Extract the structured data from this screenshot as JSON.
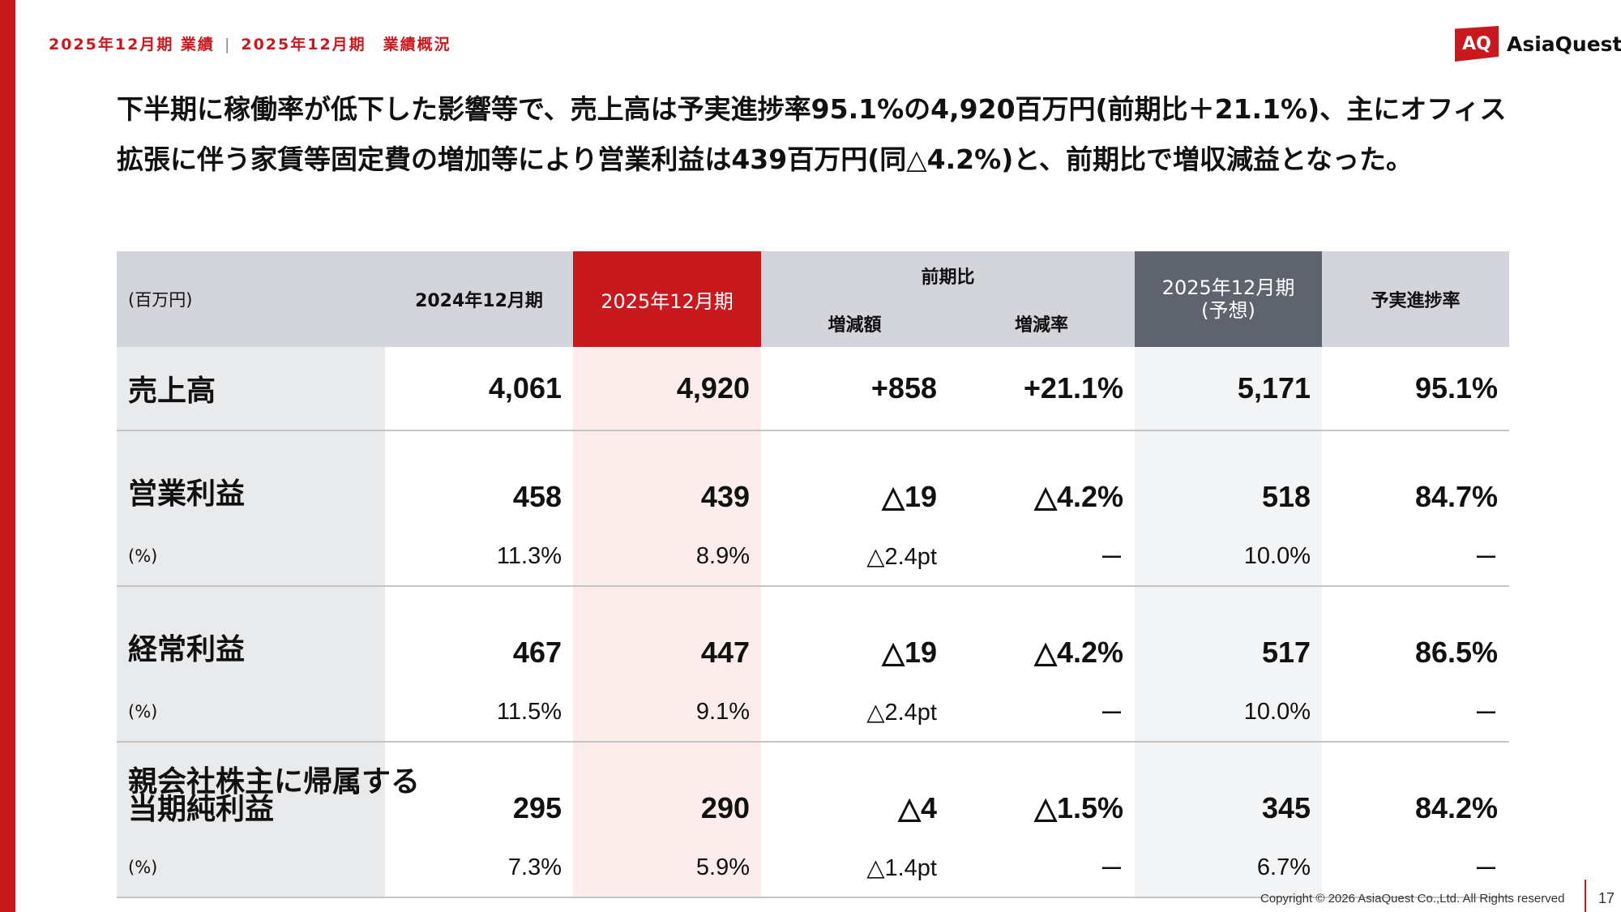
{
  "breadcrumb": {
    "section": "2025年12月期 業績",
    "page": "2025年12月期　業績概況"
  },
  "logo": {
    "mark": "AQ",
    "name": "AsiaQuest"
  },
  "headline": {
    "line1": "下半期に稼働率が低下した影響等で、売上高は予実進捗率95.1%の4,920百万円(前期比＋21.1%)、主にオフィス",
    "line2": "拡張に伴う家賃等固定費の増加等により営業利益は439百万円(同△4.2%)と、前期比で増収減益となった。"
  },
  "table": {
    "header": {
      "unit": "(百万円)",
      "prev_period": "2024年12月期",
      "curr_period": "2025年12月期",
      "yoy": "前期比",
      "yoy_amount": "増減額",
      "yoy_rate": "増減率",
      "forecast_line1": "2025年12月期",
      "forecast_line2": "(予想)",
      "progress": "予実進捗率"
    },
    "rows": [
      {
        "label": "売上高",
        "prev": "4,061",
        "curr": "4,920",
        "diff": "+858",
        "rate": "+21.1%",
        "forecast": "5,171",
        "progress": "95.1%"
      },
      {
        "label": "営業利益",
        "prev": "458",
        "curr": "439",
        "diff": "△19",
        "rate": "△4.2%",
        "forecast": "518",
        "progress": "84.7%"
      },
      {
        "label": "(%)",
        "prev": "11.3%",
        "curr": "8.9%",
        "diff": "△2.4pt",
        "rate": "ー",
        "forecast": "10.0%",
        "progress": "ー"
      },
      {
        "label": "経常利益",
        "prev": "467",
        "curr": "447",
        "diff": "△19",
        "rate": "△4.2%",
        "forecast": "517",
        "progress": "86.5%"
      },
      {
        "label": "(%)",
        "prev": "11.5%",
        "curr": "9.1%",
        "diff": "△2.4pt",
        "rate": "ー",
        "forecast": "10.0%",
        "progress": "ー"
      },
      {
        "label": "親会社株主に帰属する",
        "label2": "当期純利益",
        "prev": "295",
        "curr": "290",
        "diff": "△4",
        "rate": "△1.5%",
        "forecast": "345",
        "progress": "84.2%"
      },
      {
        "label": "(%)",
        "prev": "7.3%",
        "curr": "5.9%",
        "diff": "△1.4pt",
        "rate": "ー",
        "forecast": "6.7%",
        "progress": "ー"
      }
    ]
  },
  "footer": {
    "copyright": "Copyright © 2026 AsiaQuest Co.,Ltd. All Rights reserved",
    "page_number": "17"
  },
  "colors": {
    "accent": "#c8191e",
    "forecast_header": "#5f636d",
    "header_gray": "#d3d5da"
  }
}
